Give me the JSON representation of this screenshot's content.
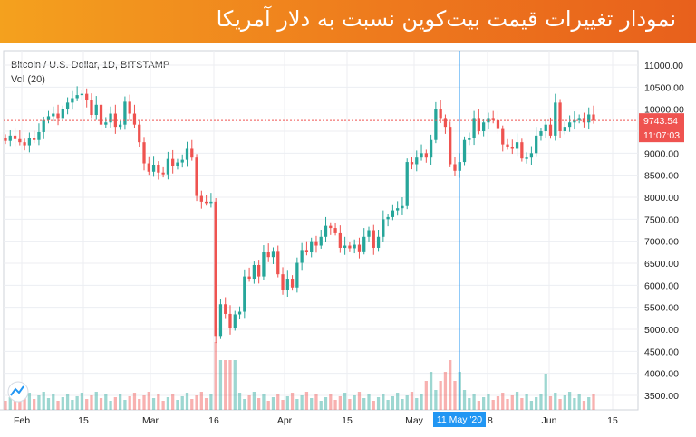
{
  "header": {
    "title": "نمودار تغییرات قیمت بیت‌کوین نسبت به دلار آمریکا"
  },
  "legend": {
    "symbol": "Bitcoin / U.S. Dollar, 1D, BITSTAMP",
    "volume": "Vol (20)"
  },
  "price_badge": {
    "value": "9743.54",
    "countdown": "11:07:03"
  },
  "crosshair_label": "11 May '20",
  "colors": {
    "up": "#26a69a",
    "down": "#ef5350",
    "banner": "#ee7a1d",
    "price_line": "#ef5350",
    "crosshair": "#2196f3"
  },
  "chart_data": {
    "type": "candlestick",
    "y_ticks": [
      "11000.00",
      "10500.00",
      "10000.00",
      "9500.00",
      "9000.00",
      "8500.00",
      "8000.00",
      "7500.00",
      "7000.00",
      "6500.00",
      "6000.00",
      "5500.00",
      "5000.00",
      "4500.00",
      "4000.00",
      "3500.00"
    ],
    "x_ticks": [
      "Feb",
      "15",
      "Mar",
      "16",
      "Apr",
      "15",
      "May",
      "18",
      "Jun",
      "15"
    ],
    "ylim": [
      3200,
      11300
    ],
    "last_price": 9743.54,
    "series": [
      {
        "open": 9350,
        "close": 9280
      },
      {
        "open": 9280,
        "close": 9400
      },
      {
        "open": 9400,
        "close": 9320
      },
      {
        "open": 9320,
        "close": 9250
      },
      {
        "open": 9250,
        "close": 9180
      },
      {
        "open": 9180,
        "close": 9350
      },
      {
        "open": 9350,
        "close": 9300
      },
      {
        "open": 9300,
        "close": 9480
      },
      {
        "open": 9480,
        "close": 9750
      },
      {
        "open": 9750,
        "close": 9840
      },
      {
        "open": 9840,
        "close": 9900
      },
      {
        "open": 9900,
        "close": 9800
      },
      {
        "open": 9800,
        "close": 10000
      },
      {
        "open": 10000,
        "close": 10150
      },
      {
        "open": 10150,
        "close": 10250
      },
      {
        "open": 10250,
        "close": 10320
      },
      {
        "open": 10320,
        "close": 10350
      },
      {
        "open": 10350,
        "close": 10200
      },
      {
        "open": 10200,
        "close": 9870
      },
      {
        "open": 9870,
        "close": 10100
      },
      {
        "open": 10100,
        "close": 9650
      },
      {
        "open": 9650,
        "close": 9700
      },
      {
        "open": 9700,
        "close": 9900
      },
      {
        "open": 9900,
        "close": 9600
      },
      {
        "open": 9600,
        "close": 9650
      },
      {
        "open": 9650,
        "close": 10170
      },
      {
        "open": 10170,
        "close": 9900
      },
      {
        "open": 9900,
        "close": 9650
      },
      {
        "open": 9650,
        "close": 9250
      },
      {
        "open": 9250,
        "close": 8770
      },
      {
        "open": 8770,
        "close": 8580
      },
      {
        "open": 8580,
        "close": 8740
      },
      {
        "open": 8740,
        "close": 8560
      },
      {
        "open": 8560,
        "close": 8520
      },
      {
        "open": 8520,
        "close": 8870
      },
      {
        "open": 8870,
        "close": 8700
      },
      {
        "open": 8700,
        "close": 8790
      },
      {
        "open": 8790,
        "close": 8850
      },
      {
        "open": 8850,
        "close": 9100
      },
      {
        "open": 9100,
        "close": 8900
      },
      {
        "open": 8900,
        "close": 8030
      },
      {
        "open": 8030,
        "close": 7900
      },
      {
        "open": 7900,
        "close": 7880
      },
      {
        "open": 7880,
        "close": 7900
      },
      {
        "open": 7900,
        "close": 4850
      },
      {
        "open": 4850,
        "close": 5570
      },
      {
        "open": 5570,
        "close": 5350
      },
      {
        "open": 5350,
        "close": 5040
      },
      {
        "open": 5040,
        "close": 5340
      },
      {
        "open": 5340,
        "close": 5400
      },
      {
        "open": 5400,
        "close": 6200
      },
      {
        "open": 6200,
        "close": 6150
      },
      {
        "open": 6150,
        "close": 6460
      },
      {
        "open": 6460,
        "close": 6200
      },
      {
        "open": 6200,
        "close": 6750
      },
      {
        "open": 6750,
        "close": 6640
      },
      {
        "open": 6640,
        "close": 6780
      },
      {
        "open": 6780,
        "close": 6250
      },
      {
        "open": 6250,
        "close": 5900
      },
      {
        "open": 5900,
        "close": 6150
      },
      {
        "open": 6150,
        "close": 5950
      },
      {
        "open": 5950,
        "close": 6510
      },
      {
        "open": 6510,
        "close": 6800
      },
      {
        "open": 6800,
        "close": 6750
      },
      {
        "open": 6750,
        "close": 7000
      },
      {
        "open": 7000,
        "close": 6900
      },
      {
        "open": 6900,
        "close": 7100
      },
      {
        "open": 7100,
        "close": 7350
      },
      {
        "open": 7350,
        "close": 7300
      },
      {
        "open": 7300,
        "close": 7200
      },
      {
        "open": 7200,
        "close": 6850
      },
      {
        "open": 6850,
        "close": 6900
      },
      {
        "open": 6900,
        "close": 6840
      },
      {
        "open": 6840,
        "close": 6920
      },
      {
        "open": 6920,
        "close": 6770
      },
      {
        "open": 6770,
        "close": 7100
      },
      {
        "open": 7100,
        "close": 7250
      },
      {
        "open": 7250,
        "close": 6850
      },
      {
        "open": 6850,
        "close": 7100
      },
      {
        "open": 7100,
        "close": 7500
      },
      {
        "open": 7500,
        "close": 7550
      },
      {
        "open": 7550,
        "close": 7700
      },
      {
        "open": 7700,
        "close": 7750
      },
      {
        "open": 7750,
        "close": 7800
      },
      {
        "open": 7800,
        "close": 8800
      },
      {
        "open": 8800,
        "close": 8750
      },
      {
        "open": 8750,
        "close": 8900
      },
      {
        "open": 8900,
        "close": 9000
      },
      {
        "open": 9000,
        "close": 8900
      },
      {
        "open": 8900,
        "close": 9300
      },
      {
        "open": 9300,
        "close": 10000
      },
      {
        "open": 10000,
        "close": 9800
      },
      {
        "open": 9800,
        "close": 9600
      },
      {
        "open": 9600,
        "close": 8750
      },
      {
        "open": 8750,
        "close": 8600
      },
      {
        "open": 8600,
        "close": 8800
      },
      {
        "open": 8800,
        "close": 9300
      },
      {
        "open": 9300,
        "close": 9350
      },
      {
        "open": 9350,
        "close": 9800
      },
      {
        "open": 9800,
        "close": 9500
      },
      {
        "open": 9500,
        "close": 9700
      },
      {
        "open": 9700,
        "close": 9800
      },
      {
        "open": 9800,
        "close": 9750
      },
      {
        "open": 9750,
        "close": 9550
      },
      {
        "open": 9550,
        "close": 9200
      },
      {
        "open": 9200,
        "close": 9150
      },
      {
        "open": 9150,
        "close": 9100
      },
      {
        "open": 9100,
        "close": 9250
      },
      {
        "open": 9250,
        "close": 8880
      },
      {
        "open": 8880,
        "close": 8900
      },
      {
        "open": 8900,
        "close": 9000
      },
      {
        "open": 9000,
        "close": 9400
      },
      {
        "open": 9400,
        "close": 9500
      },
      {
        "open": 9500,
        "close": 9650
      },
      {
        "open": 9650,
        "close": 9400
      },
      {
        "open": 9400,
        "close": 10150
      },
      {
        "open": 10150,
        "close": 9500
      },
      {
        "open": 9500,
        "close": 9600
      },
      {
        "open": 9600,
        "close": 9700
      },
      {
        "open": 9700,
        "close": 9750
      },
      {
        "open": 9750,
        "close": 9800
      },
      {
        "open": 9800,
        "close": 9700
      },
      {
        "open": 9700,
        "close": 9880
      },
      {
        "open": 9880,
        "close": 9743
      }
    ]
  }
}
